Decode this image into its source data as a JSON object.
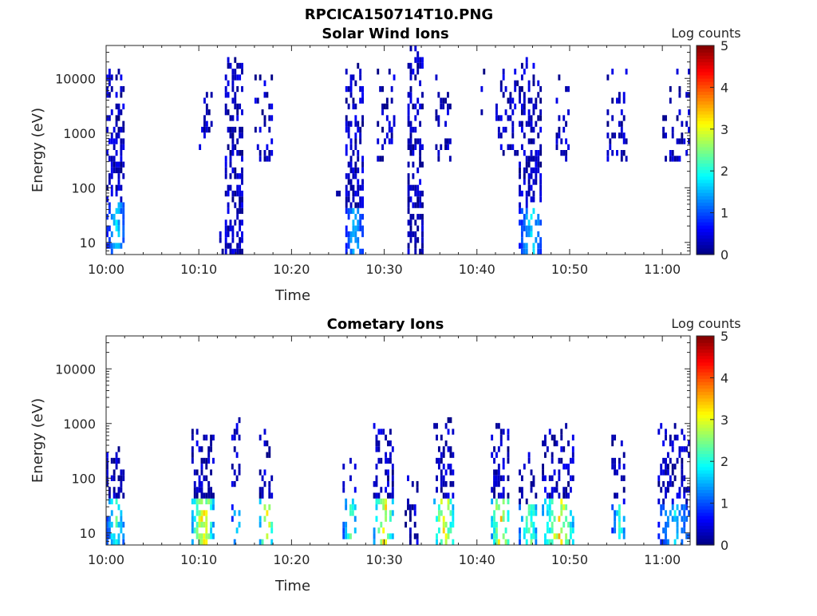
{
  "figure_title": "RPCICA150714T10.PNG",
  "chart_data": [
    {
      "type": "heatmap",
      "title": "Solar Wind Ions",
      "xlabel": "Time",
      "ylabel": "Energy (eV)",
      "x_range_minutes": [
        0,
        63
      ],
      "x_ticks": [
        {
          "label": "10:00",
          "min": 0
        },
        {
          "label": "10:10",
          "min": 10
        },
        {
          "label": "10:20",
          "min": 20
        },
        {
          "label": "10:30",
          "min": 30
        },
        {
          "label": "10:40",
          "min": 40
        },
        {
          "label": "10:50",
          "min": 50
        },
        {
          "label": "11:00",
          "min": 60
        }
      ],
      "y_scale": "log",
      "y_range": [
        6,
        40000
      ],
      "y_ticks": [
        {
          "label": "10",
          "value": 10
        },
        {
          "label": "100",
          "value": 100
        },
        {
          "label": "1000",
          "value": 1000
        },
        {
          "label": "10000",
          "value": 10000
        }
      ],
      "colorbar": {
        "label": "Log counts",
        "range": [
          0,
          5
        ],
        "ticks": [
          {
            "label": "0",
            "value": 0
          },
          {
            "label": "1",
            "value": 1
          },
          {
            "label": "2",
            "value": 2
          },
          {
            "label": "3",
            "value": 3
          },
          {
            "label": "4",
            "value": 4
          },
          {
            "label": "5",
            "value": 5
          }
        ],
        "colormap": "jet"
      },
      "bursts": [
        {
          "t0": 0.0,
          "t1": 2.0,
          "emin": 6,
          "emax": 16000,
          "dens": 0.55,
          "peak": 2.0,
          "core_emax": 60
        },
        {
          "t0": 10.0,
          "t1": 11.5,
          "emin": 500,
          "emax": 13000,
          "dens": 0.28,
          "peak": 0.3,
          "core_emax": 0
        },
        {
          "t0": 12.2,
          "t1": 12.7,
          "emin": 6,
          "emax": 20,
          "dens": 0.5,
          "peak": 0.3,
          "core_emax": 0
        },
        {
          "t0": 12.8,
          "t1": 14.8,
          "emin": 6,
          "emax": 24000,
          "dens": 0.62,
          "peak": 0.6,
          "core_emax": 0
        },
        {
          "t0": 16.0,
          "t1": 18.0,
          "emin": 300,
          "emax": 11000,
          "dens": 0.32,
          "peak": 0.3,
          "core_emax": 0
        },
        {
          "t0": 24.8,
          "t1": 25.2,
          "emin": 70,
          "emax": 150,
          "dens": 0.4,
          "peak": 0.2,
          "core_emax": 0
        },
        {
          "t0": 25.8,
          "t1": 27.6,
          "emin": 6,
          "emax": 18000,
          "dens": 0.62,
          "peak": 2.0,
          "core_emax": 45
        },
        {
          "t0": 29.2,
          "t1": 31.2,
          "emin": 300,
          "emax": 15000,
          "dens": 0.3,
          "peak": 0.3,
          "core_emax": 0
        },
        {
          "t0": 32.5,
          "t1": 34.2,
          "emin": 6,
          "emax": 36000,
          "dens": 0.62,
          "peak": 0.6,
          "core_emax": 0
        },
        {
          "t0": 35.5,
          "t1": 37.2,
          "emin": 300,
          "emax": 15000,
          "dens": 0.32,
          "peak": 0.3,
          "core_emax": 0
        },
        {
          "t0": 40.4,
          "t1": 40.7,
          "emin": 800,
          "emax": 13000,
          "dens": 0.3,
          "peak": 0.2,
          "core_emax": 0
        },
        {
          "t0": 42.0,
          "t1": 44.5,
          "emin": 400,
          "emax": 15000,
          "dens": 0.35,
          "peak": 0.3,
          "core_emax": 0
        },
        {
          "t0": 44.5,
          "t1": 47.0,
          "emin": 6,
          "emax": 26000,
          "dens": 0.6,
          "peak": 2.0,
          "core_emax": 45
        },
        {
          "t0": 48.5,
          "t1": 50.0,
          "emin": 350,
          "emax": 12000,
          "dens": 0.3,
          "peak": 0.3,
          "core_emax": 0
        },
        {
          "t0": 54.0,
          "t1": 56.2,
          "emin": 350,
          "emax": 16000,
          "dens": 0.35,
          "peak": 0.3,
          "core_emax": 0
        },
        {
          "t0": 60.0,
          "t1": 63.0,
          "emin": 350,
          "emax": 15000,
          "dens": 0.3,
          "peak": 0.3,
          "core_emax": 0
        }
      ]
    },
    {
      "type": "heatmap",
      "title": "Cometary Ions",
      "xlabel": "Time",
      "ylabel": "Energy (eV)",
      "x_range_minutes": [
        0,
        63
      ],
      "x_ticks": [
        {
          "label": "10:00",
          "min": 0
        },
        {
          "label": "10:10",
          "min": 10
        },
        {
          "label": "10:20",
          "min": 20
        },
        {
          "label": "10:30",
          "min": 30
        },
        {
          "label": "10:40",
          "min": 40
        },
        {
          "label": "10:50",
          "min": 50
        },
        {
          "label": "11:00",
          "min": 60
        }
      ],
      "y_scale": "log",
      "y_range": [
        6,
        40000
      ],
      "y_ticks": [
        {
          "label": "10",
          "value": 10
        },
        {
          "label": "100",
          "value": 100
        },
        {
          "label": "1000",
          "value": 1000
        },
        {
          "label": "10000",
          "value": 10000
        }
      ],
      "colorbar": {
        "label": "Log counts",
        "range": [
          0,
          5
        ],
        "ticks": [
          {
            "label": "0",
            "value": 0
          },
          {
            "label": "1",
            "value": 1
          },
          {
            "label": "2",
            "value": 2
          },
          {
            "label": "3",
            "value": 3
          },
          {
            "label": "4",
            "value": 4
          },
          {
            "label": "5",
            "value": 5
          }
        ],
        "colormap": "jet"
      },
      "bursts": [
        {
          "t0": 0.0,
          "t1": 2.0,
          "emin": 6,
          "emax": 400,
          "dens": 0.5,
          "peak": 2.5,
          "core_emax": 45
        },
        {
          "t0": 9.2,
          "t1": 11.5,
          "emin": 6,
          "emax": 700,
          "dens": 0.55,
          "peak": 3.8,
          "core_emax": 40
        },
        {
          "t0": 13.5,
          "t1": 14.5,
          "emin": 6,
          "emax": 1800,
          "dens": 0.4,
          "peak": 2.2,
          "core_emax": 30
        },
        {
          "t0": 16.5,
          "t1": 18.0,
          "emin": 6,
          "emax": 700,
          "dens": 0.5,
          "peak": 3.7,
          "core_emax": 40
        },
        {
          "t0": 25.5,
          "t1": 27.0,
          "emin": 6,
          "emax": 250,
          "dens": 0.45,
          "peak": 2.8,
          "core_emax": 40
        },
        {
          "t0": 28.8,
          "t1": 31.0,
          "emin": 6,
          "emax": 1000,
          "dens": 0.5,
          "peak": 3.8,
          "core_emax": 40
        },
        {
          "t0": 32.2,
          "t1": 33.5,
          "emin": 6,
          "emax": 130,
          "dens": 0.45,
          "peak": 1.5,
          "core_emax": 0
        },
        {
          "t0": 35.3,
          "t1": 37.5,
          "emin": 6,
          "emax": 1300,
          "dens": 0.5,
          "peak": 3.8,
          "core_emax": 40
        },
        {
          "t0": 41.5,
          "t1": 43.5,
          "emin": 6,
          "emax": 900,
          "dens": 0.5,
          "peak": 3.9,
          "core_emax": 40
        },
        {
          "t0": 44.5,
          "t1": 46.5,
          "emin": 6,
          "emax": 300,
          "dens": 0.5,
          "peak": 3.0,
          "core_emax": 35
        },
        {
          "t0": 47.0,
          "t1": 50.5,
          "emin": 6,
          "emax": 1100,
          "dens": 0.5,
          "peak": 3.6,
          "core_emax": 45
        },
        {
          "t0": 54.5,
          "t1": 56.0,
          "emin": 6,
          "emax": 800,
          "dens": 0.45,
          "peak": 2.4,
          "core_emax": 35
        },
        {
          "t0": 59.5,
          "t1": 63.0,
          "emin": 6,
          "emax": 1000,
          "dens": 0.45,
          "peak": 2.0,
          "core_emax": 35
        }
      ]
    }
  ]
}
